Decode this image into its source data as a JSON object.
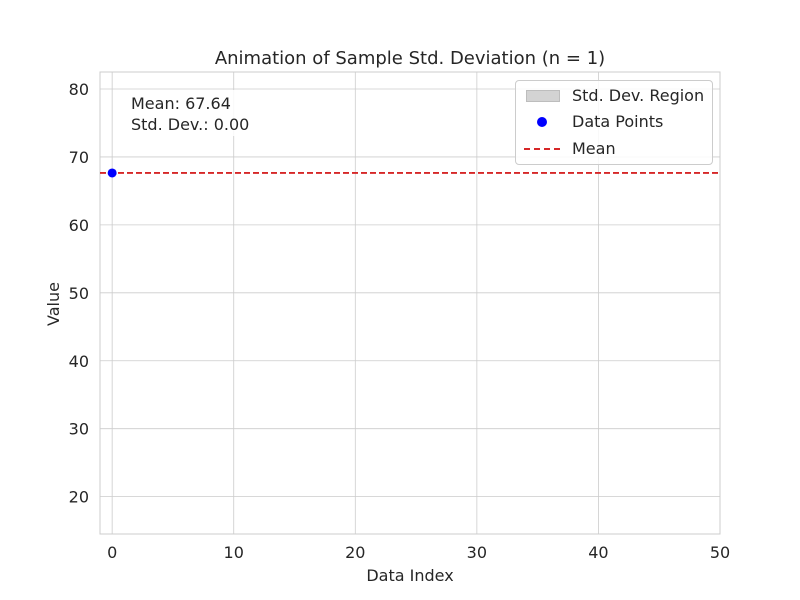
{
  "chart_data": {
    "type": "scatter",
    "title": "Animation of Sample Std. Deviation (n = 1)",
    "xlabel": "Data Index",
    "ylabel": "Value",
    "xlim": [
      -1,
      50
    ],
    "ylim": [
      14.5,
      82.5
    ],
    "xticks": [
      0,
      10,
      20,
      30,
      40,
      50
    ],
    "yticks": [
      20,
      30,
      40,
      50,
      60,
      70,
      80
    ],
    "grid": true,
    "legend_position": "top-right",
    "series": [
      {
        "name": "Data Points",
        "kind": "scatter",
        "color": "#0000ff",
        "x": [
          0
        ],
        "y": [
          67.64
        ]
      },
      {
        "name": "Mean",
        "kind": "hline",
        "style": "dashed",
        "color": "#d62728",
        "y": 67.64
      },
      {
        "name": "Std. Dev. Region",
        "kind": "band",
        "color": "#d3d3d3",
        "y_low": 67.64,
        "y_high": 67.64
      }
    ],
    "annotation": {
      "mean_text": "Mean: 67.64",
      "std_text": "Std. Dev.: 0.00"
    },
    "legend": [
      "Std. Dev. Region",
      "Data Points",
      "Mean"
    ]
  }
}
